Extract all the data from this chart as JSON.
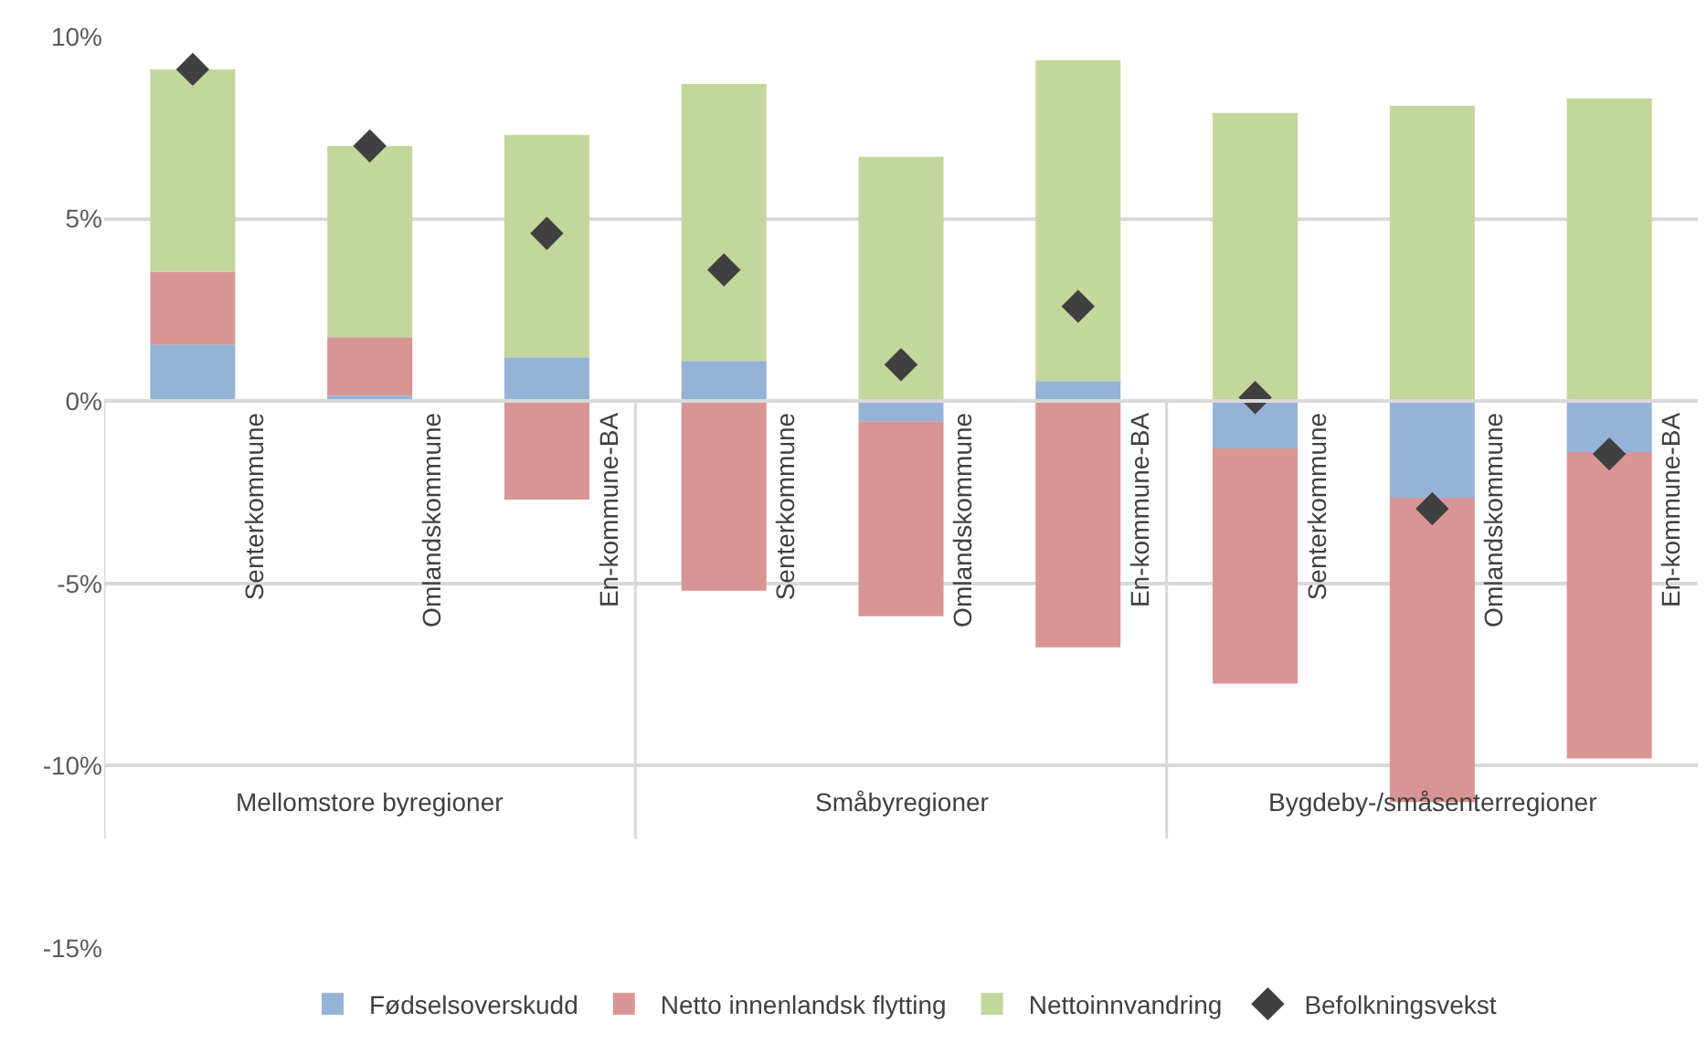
{
  "chart_data": {
    "type": "bar",
    "stacked": true,
    "categories": [
      "Senterkommune",
      "Omlandskommune",
      "En-kommune-BA",
      "Senterkommune",
      "Omlandskommune",
      "En-kommune-BA",
      "Senterkommune",
      "Omlandskommune",
      "En-kommune-BA"
    ],
    "annotations": [
      "Mellomstore byregioner",
      "Småbyregioner",
      "Bygdeby-/småsenterregioner"
    ],
    "series": [
      {
        "name": "Fødselsoverskudd",
        "color": "#95b3d7",
        "values": [
          1.55,
          0.15,
          1.2,
          1.1,
          -0.55,
          0.55,
          -1.3,
          -2.65,
          -1.4
        ]
      },
      {
        "name": "Netto innenlandsk flytting",
        "color": "#d99594",
        "values": [
          2.0,
          1.6,
          -2.7,
          -5.2,
          -5.35,
          -6.75,
          -6.45,
          -8.35,
          -8.4
        ]
      },
      {
        "name": "Nettoinnvandring",
        "color": "#c3d69b",
        "values": [
          5.55,
          5.25,
          6.1,
          7.6,
          6.7,
          8.8,
          7.9,
          8.1,
          8.3
        ]
      },
      {
        "name": "Befolkningsvekst",
        "type": "scatter",
        "marker": "diamond",
        "color": "#404040",
        "values": [
          9.1,
          7.0,
          4.6,
          3.6,
          1.0,
          2.6,
          0.1,
          -2.95,
          -1.45
        ]
      }
    ],
    "ylim": [
      -15,
      10
    ],
    "yticks": [
      {
        "value": -15,
        "label": "-15%"
      },
      {
        "value": -10,
        "label": "-10%"
      },
      {
        "value": -5,
        "label": "-5%"
      },
      {
        "value": 0,
        "label": "0%"
      },
      {
        "value": 5,
        "label": "5%"
      },
      {
        "value": 10,
        "label": "10%"
      }
    ],
    "grid": "y",
    "legend": "bottom"
  }
}
